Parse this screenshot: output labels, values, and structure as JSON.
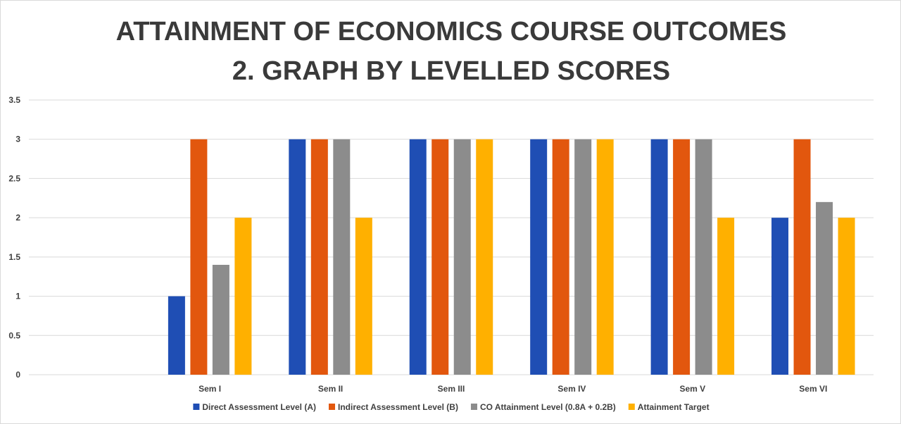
{
  "chart_data": {
    "type": "bar",
    "title": "ATTAINMENT OF ECONOMICS COURSE OUTCOMES",
    "subtitle": "2. GRAPH BY LEVELLED SCORES",
    "xlabel": "",
    "ylabel": "",
    "ylim": [
      0,
      3.5
    ],
    "yticks": [
      "0",
      "0.5",
      "1",
      "1.5",
      "2",
      "2.5",
      "3",
      "3.5"
    ],
    "grid": true,
    "legend_position": "bottom",
    "categories": [
      "",
      "Sem I",
      "Sem II",
      "Sem III",
      "Sem IV",
      "Sem V",
      "Sem VI"
    ],
    "series": [
      {
        "name": "Direct Assessment Level (A)",
        "color": "#1f4eb4",
        "values": [
          null,
          1,
          3,
          3,
          3,
          3,
          2
        ]
      },
      {
        "name": "Indirect Assessment Level (B)",
        "color": "#e2570e",
        "values": [
          null,
          3,
          3,
          3,
          3,
          3,
          3
        ]
      },
      {
        "name": "CO Attainment Level (0.8A + 0.2B)",
        "color": "#8c8c8c",
        "values": [
          null,
          1.4,
          3,
          3,
          3,
          3,
          2.2
        ]
      },
      {
        "name": "Attainment Target",
        "color": "#ffb000",
        "values": [
          null,
          2,
          2,
          3,
          3,
          2,
          2
        ]
      }
    ]
  }
}
